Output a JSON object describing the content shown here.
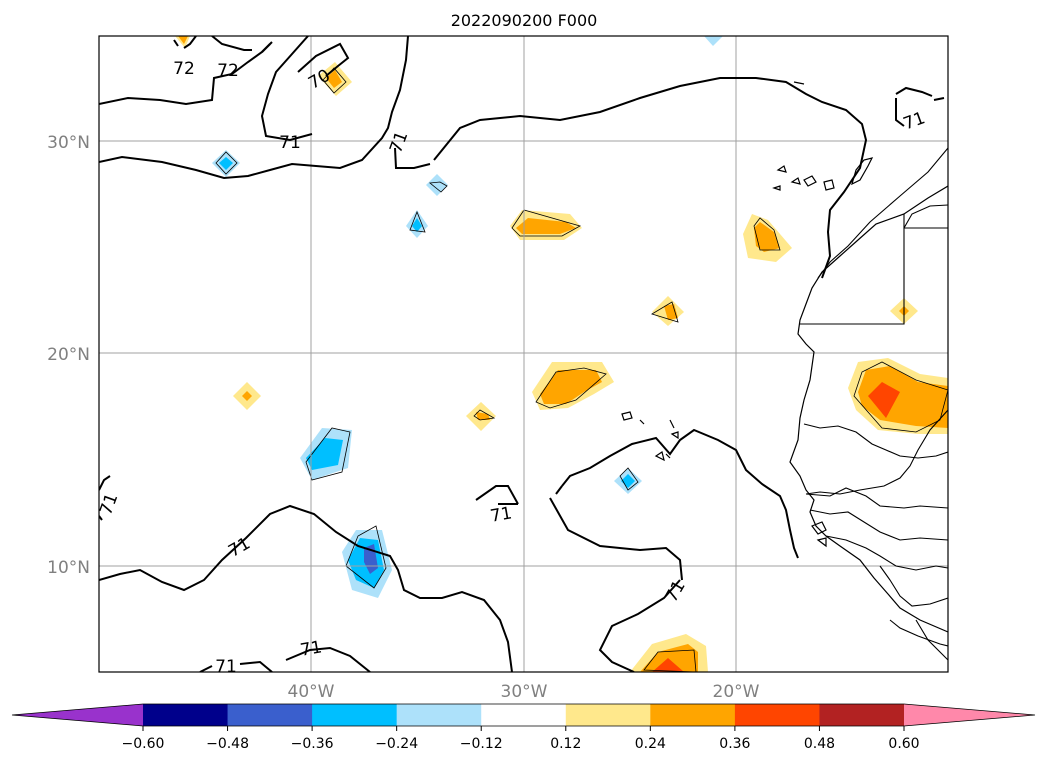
{
  "title": "2022090200 F000",
  "lat_labels": [
    "30°N",
    "20°N",
    "10°N"
  ],
  "lon_labels": [
    "40°W",
    "30°W",
    "20°W"
  ],
  "contour_labels": [
    "72",
    "72",
    "70",
    "71",
    "71",
    "71",
    "71",
    "71",
    "71",
    "71",
    "71"
  ],
  "colorbar": {
    "tick_labels": [
      "−0.60",
      "−0.48",
      "−0.36",
      "−0.24",
      "−0.12",
      "0.12",
      "0.24",
      "0.36",
      "0.48",
      "0.60"
    ],
    "colors": [
      "#9932CC",
      "#00008B",
      "#3A5FCD",
      "#00BFFF",
      "#ADE1FA",
      "#FFFFFF",
      "#FFE88C",
      "#FFA500",
      "#FF4500",
      "#B22222",
      "#FF88AA"
    ]
  },
  "shading_colors": {
    "light_blue": "#ADE1FA",
    "blue": "#00BFFF",
    "mid_blue": "#3A5FCD",
    "light_yellow": "#FFE88C",
    "orange": "#FFA500",
    "red_orange": "#FF4500"
  },
  "map_extent": {
    "lon": [
      -50,
      -10
    ],
    "lat": [
      5,
      35
    ]
  }
}
